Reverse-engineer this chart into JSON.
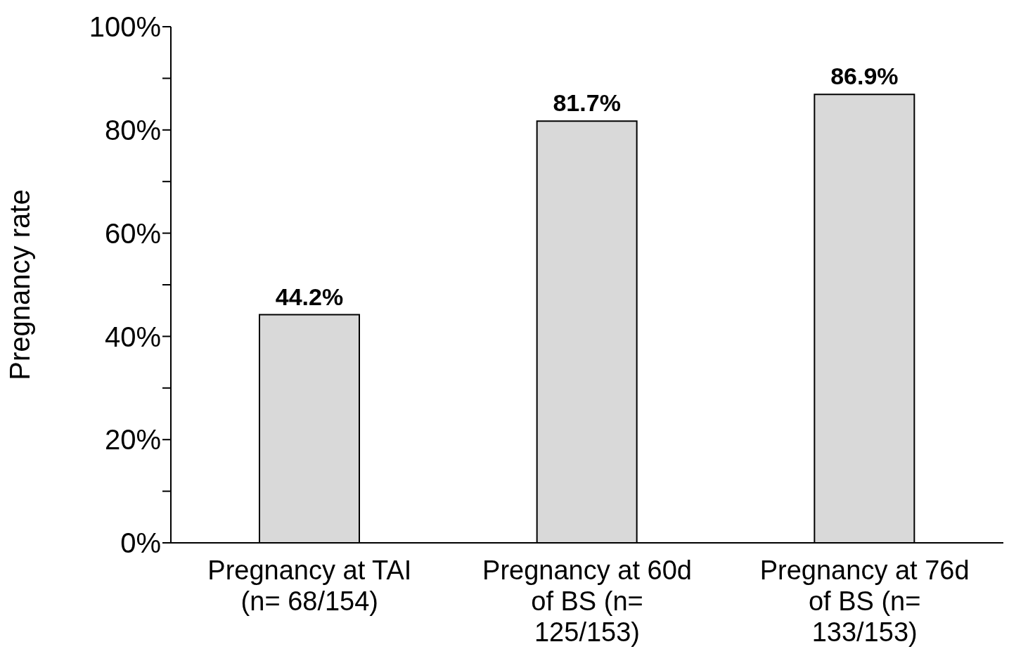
{
  "chart_data": {
    "type": "bar",
    "ylabel": "Pregnancy rate",
    "categories": [
      "Pregnancy at TAI (n= 68/154)",
      "Pregnancy at 60d of BS (n= 125/153)",
      "Pregnancy at 76d of BS (n= 133/153)"
    ],
    "values": [
      44.2,
      81.7,
      86.9
    ],
    "value_labels": [
      "44.2%",
      "81.7%",
      "86.9%"
    ],
    "color": "#d9d9d9",
    "ylim": [
      0,
      100
    ],
    "yticks": [
      {
        "value": 0,
        "label": "0%"
      },
      {
        "value": 10,
        "label": null
      },
      {
        "value": 20,
        "label": "20%"
      },
      {
        "value": 30,
        "label": null
      },
      {
        "value": 40,
        "label": "40%"
      },
      {
        "value": 50,
        "label": null
      },
      {
        "value": 60,
        "label": "60%"
      },
      {
        "value": 70,
        "label": null
      },
      {
        "value": 80,
        "label": "80%"
      },
      {
        "value": 90,
        "label": null
      },
      {
        "value": 100,
        "label": "100%"
      }
    ],
    "grid": false,
    "legend": false
  }
}
